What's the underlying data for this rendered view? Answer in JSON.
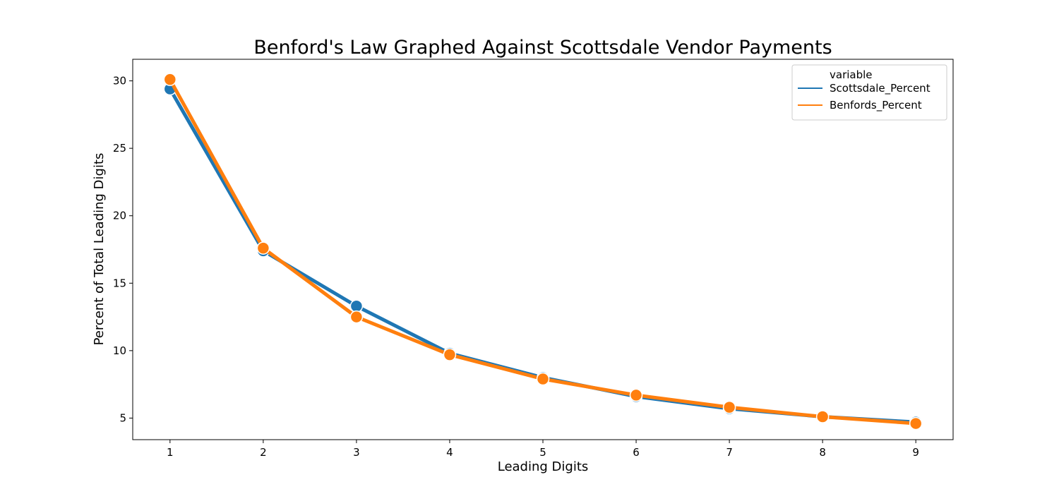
{
  "chart_data": {
    "type": "line",
    "title": "Benford's Law Graphed Against Scottsdale Vendor Payments",
    "xlabel": "Leading Digits",
    "ylabel": "Percent of Total Leading Digits",
    "x": [
      1,
      2,
      3,
      4,
      5,
      6,
      7,
      8,
      9
    ],
    "xticks": [
      "1",
      "2",
      "3",
      "4",
      "5",
      "6",
      "7",
      "8",
      "9"
    ],
    "yticks": [
      5,
      10,
      15,
      20,
      25,
      30
    ],
    "ylim": [
      3.4,
      31.6
    ],
    "xlim": [
      0.6,
      9.4
    ],
    "grid": false,
    "legend": {
      "title": "variable",
      "placement": "top-right"
    },
    "series": [
      {
        "name": "Scottsdale_Percent",
        "color": "#1f77b4",
        "values": [
          29.4,
          17.4,
          13.3,
          9.8,
          8.0,
          6.6,
          5.7,
          5.1,
          4.7
        ]
      },
      {
        "name": "Benfords_Percent",
        "color": "#ff7f0e",
        "values": [
          30.1,
          17.6,
          12.5,
          9.7,
          7.9,
          6.7,
          5.8,
          5.1,
          4.6
        ]
      }
    ]
  }
}
